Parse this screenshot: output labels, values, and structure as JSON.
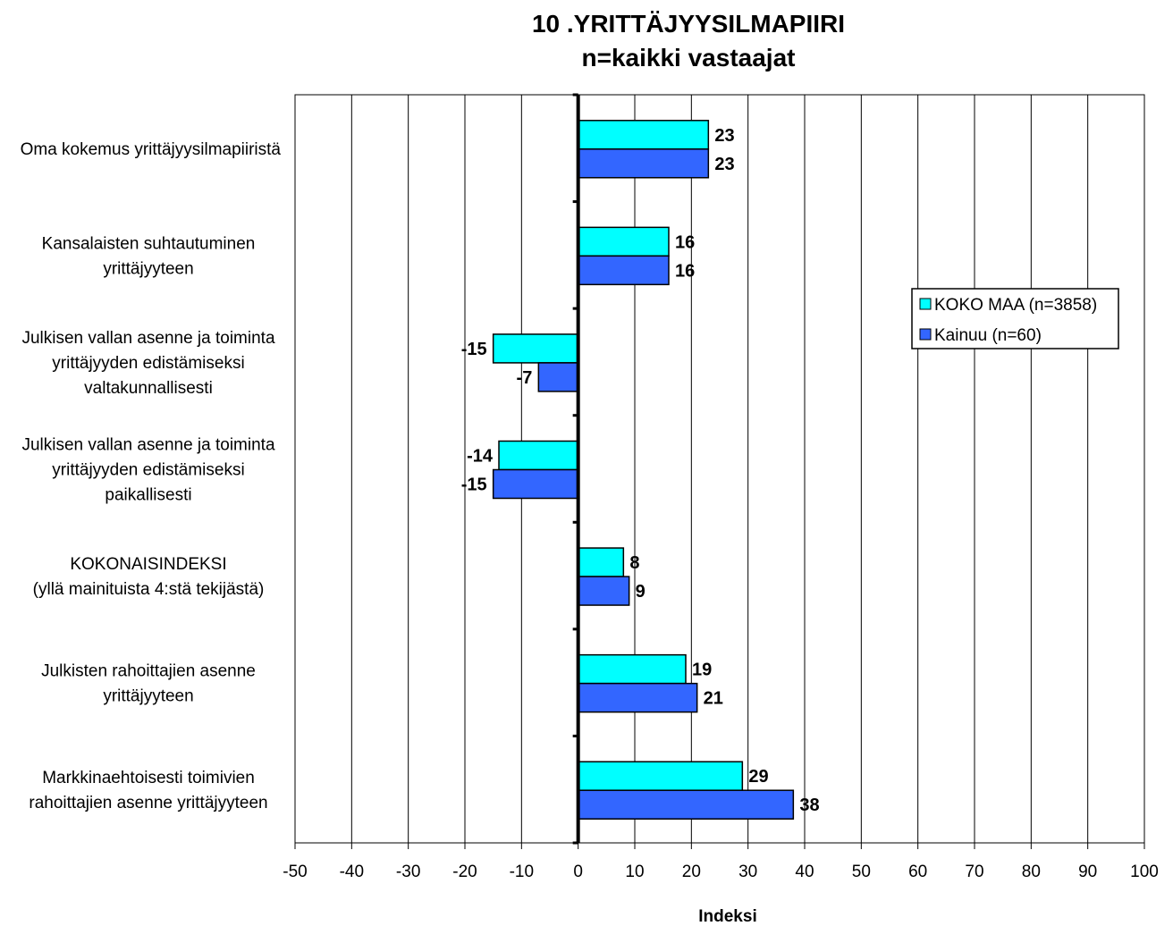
{
  "chart_data": {
    "type": "bar",
    "orientation": "horizontal",
    "title": [
      "10 .YRITTÄJYYSILMAPIIRI",
      "n=kaikki vastaajat"
    ],
    "xlabel": "Indeksi",
    "xlim": [
      -50,
      100
    ],
    "xticks": [
      -50,
      -40,
      -30,
      -20,
      -10,
      0,
      10,
      20,
      30,
      40,
      50,
      60,
      70,
      80,
      90,
      100
    ],
    "grid": "vertical",
    "legend_position": "right",
    "categories": [
      [
        "Oma kokemus yrittäjyysilmapiiristä"
      ],
      [
        "Kansalaisten suhtautuminen",
        "yrittäjyyteen"
      ],
      [
        "Julkisen vallan asenne ja toiminta",
        "yrittäjyyden edistämiseksi",
        "valtakunnallisesti"
      ],
      [
        "Julkisen vallan asenne ja toiminta",
        "yrittäjyyden edistämiseksi",
        "paikallisesti"
      ],
      [
        "KOKONAISINDEKSI",
        "(yllä mainituista 4:stä tekijästä)"
      ],
      [
        "Julkisten rahoittajien asenne",
        "yrittäjyyteen"
      ],
      [
        "Markkinaehtoisesti toimivien",
        "rahoittajien asenne yrittäjyyteen"
      ]
    ],
    "series": [
      {
        "name": "KOKO MAA (n=3858)",
        "color": "#00ffff",
        "values": [
          23,
          16,
          -15,
          -14,
          8,
          19,
          29
        ]
      },
      {
        "name": "Kainuu (n=60)",
        "color": "#3366ff",
        "values": [
          23,
          16,
          -7,
          -15,
          9,
          21,
          38
        ]
      }
    ]
  }
}
